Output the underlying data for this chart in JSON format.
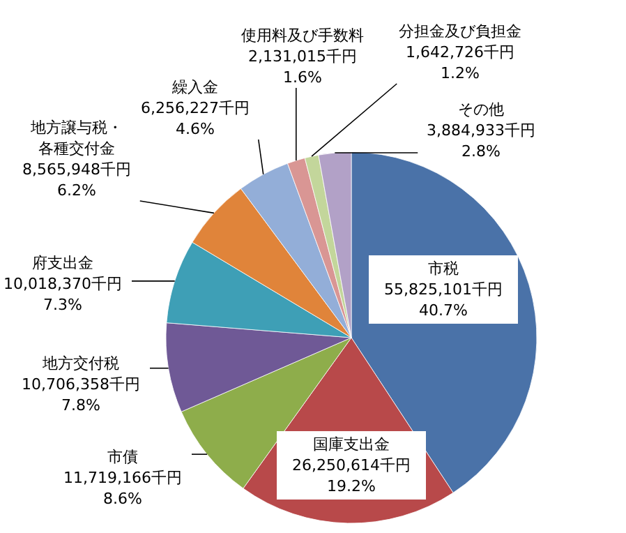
{
  "chart_data": {
    "type": "pie",
    "categories": [
      "市税",
      "国庫支出金",
      "市債",
      "地方交付税",
      "府支出金",
      "地方譲与税・各種交付金",
      "繰入金",
      "使用料及び手数料",
      "分担金及び負担金",
      "その他"
    ],
    "values": [
      55825101,
      26250614,
      11719166,
      10706358,
      10018370,
      8565948,
      6256227,
      2131015,
      1642726,
      3884933
    ],
    "colors": [
      "#4a72a8",
      "#b8494a",
      "#8ead4b",
      "#6f5996",
      "#3e9fb6",
      "#e0843a",
      "#93aed8",
      "#d99694",
      "#c3d69b",
      "#b2a1c7"
    ],
    "value_labels": [
      "55,825,101千円\n40.7%",
      "26,250,614千円\n19.2%",
      "11,719,166千円\n8.6%",
      "10,706,358千円\n7.8%",
      "10,018,370千円\n7.3%",
      "8,565,948千円\n6.2%",
      "6,256,227千円\n4.6%",
      "2,131,015千円\n1.6%",
      "1,642,726千円\n1.2%",
      "3,884,933千円\n2.8%"
    ]
  }
}
